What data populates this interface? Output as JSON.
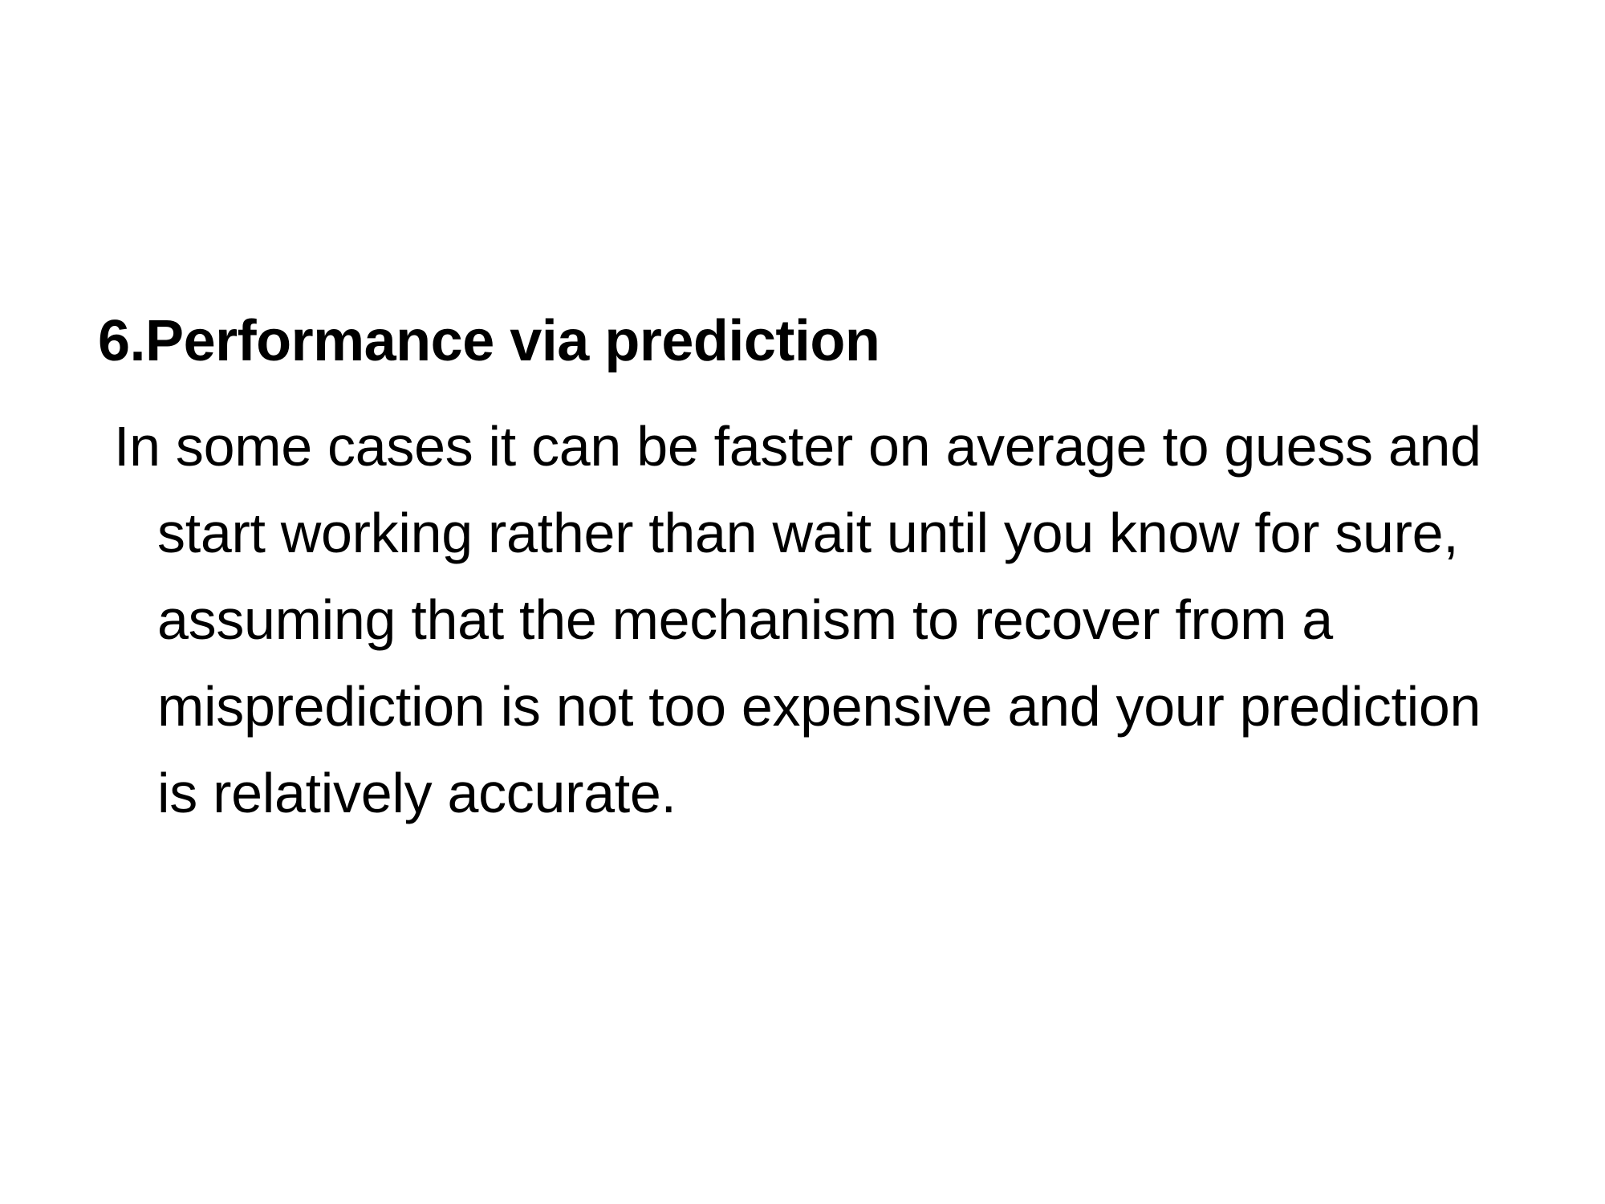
{
  "slide": {
    "heading": "6.Performance via prediction",
    "body": "In some cases it can be faster on average to guess and start working rather than wait until you know for sure, assuming that the mechanism to recover from a misprediction is not too expensive and your prediction is relatively accurate."
  }
}
